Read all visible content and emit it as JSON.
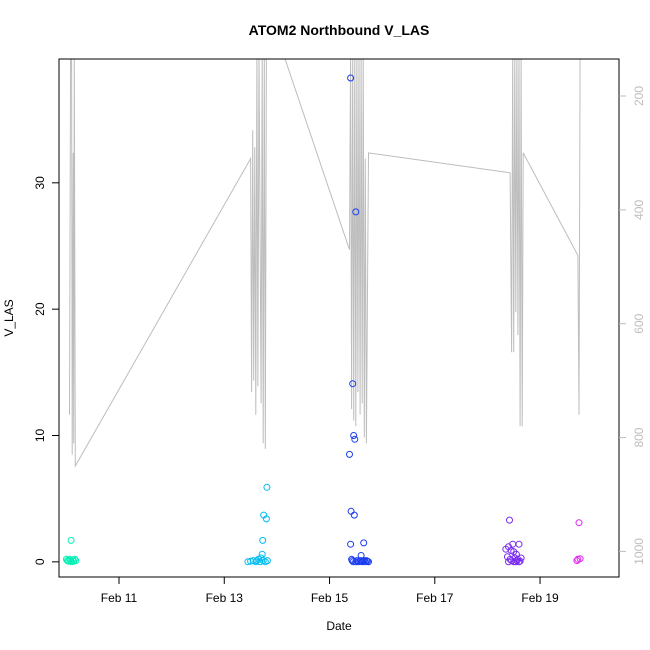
{
  "chart_data": {
    "type": "scatter",
    "title": "ATOM2 Northbound V_LAS",
    "xlabel": "Date",
    "ylabel": "V_LAS",
    "x_unit": "day of February",
    "xlim": [
      9.86,
      20.5
    ],
    "ylim": [
      -1.2,
      39.8
    ],
    "x_ticks": [
      {
        "value": 11,
        "label": "Feb 11"
      },
      {
        "value": 13,
        "label": "Feb 13"
      },
      {
        "value": 15,
        "label": "Feb 15"
      },
      {
        "value": 17,
        "label": "Feb 17"
      },
      {
        "value": 19,
        "label": "Feb 19"
      }
    ],
    "y_ticks": [
      {
        "value": 0,
        "label": "0"
      },
      {
        "value": 10,
        "label": "10"
      },
      {
        "value": 20,
        "label": "20"
      },
      {
        "value": 30,
        "label": "30"
      }
    ],
    "secondary_axis": {
      "side": "right",
      "color": "#bdbdbd",
      "reversed": true,
      "ylim": [
        1045,
        135
      ],
      "ticks": [
        {
          "value": 200,
          "label": "200"
        },
        {
          "value": 400,
          "label": "400"
        },
        {
          "value": 600,
          "label": "600"
        },
        {
          "value": 800,
          "label": "800"
        },
        {
          "value": 1000,
          "label": "1000"
        }
      ]
    },
    "grid": false,
    "legend": "none",
    "line_series": {
      "color": "#bdbdbd",
      "axis": "secondary",
      "points": [
        [
          10.06,
          760
        ],
        [
          10.08,
          120
        ],
        [
          10.1,
          120
        ],
        [
          10.11,
          830
        ],
        [
          10.13,
          300
        ],
        [
          10.14,
          810
        ],
        [
          10.15,
          120
        ],
        [
          10.17,
          850
        ],
        [
          13.5,
          310
        ],
        [
          13.52,
          720
        ],
        [
          13.54,
          260
        ],
        [
          13.56,
          700
        ],
        [
          13.58,
          290
        ],
        [
          13.6,
          760
        ],
        [
          13.62,
          120
        ],
        [
          13.64,
          710
        ],
        [
          13.66,
          120
        ],
        [
          13.7,
          740
        ],
        [
          13.72,
          120
        ],
        [
          13.74,
          810
        ],
        [
          13.76,
          120
        ],
        [
          13.78,
          820
        ],
        [
          13.8,
          120
        ],
        [
          13.82,
          120
        ],
        [
          14.1,
          120
        ],
        [
          15.38,
          470
        ],
        [
          15.4,
          120
        ],
        [
          15.42,
          750
        ],
        [
          15.44,
          120
        ],
        [
          15.46,
          770
        ],
        [
          15.48,
          120
        ],
        [
          15.5,
          780
        ],
        [
          15.52,
          120
        ],
        [
          15.54,
          720
        ],
        [
          15.56,
          120
        ],
        [
          15.58,
          760
        ],
        [
          15.6,
          120
        ],
        [
          15.62,
          740
        ],
        [
          15.64,
          120
        ],
        [
          15.66,
          800
        ],
        [
          15.68,
          310
        ],
        [
          15.7,
          810
        ],
        [
          15.74,
          300
        ],
        [
          18.43,
          335
        ],
        [
          18.46,
          650
        ],
        [
          18.48,
          120
        ],
        [
          18.5,
          650
        ],
        [
          18.52,
          120
        ],
        [
          18.54,
          580
        ],
        [
          18.56,
          120
        ],
        [
          18.58,
          620
        ],
        [
          18.6,
          120
        ],
        [
          18.62,
          780
        ],
        [
          18.64,
          120
        ],
        [
          18.66,
          780
        ],
        [
          18.68,
          300
        ],
        [
          19.72,
          480
        ],
        [
          19.74,
          760
        ],
        [
          19.76,
          120
        ]
      ]
    },
    "series": [
      {
        "color": "#00f0b4",
        "points": [
          [
            10.0,
            0.2
          ],
          [
            10.02,
            0.1
          ],
          [
            10.04,
            0.05
          ],
          [
            10.06,
            0.2
          ],
          [
            10.08,
            0.1
          ],
          [
            10.09,
            1.7
          ],
          [
            10.1,
            0.0
          ],
          [
            10.12,
            0.15
          ],
          [
            10.14,
            0.05
          ],
          [
            10.16,
            0.2
          ],
          [
            10.18,
            0.1
          ]
        ]
      },
      {
        "color": "#00bcf0",
        "points": [
          [
            13.45,
            0.0
          ],
          [
            13.5,
            0.05
          ],
          [
            13.55,
            0.1
          ],
          [
            13.6,
            0.0
          ],
          [
            13.62,
            0.1
          ],
          [
            13.65,
            0.2
          ],
          [
            13.68,
            0.0
          ],
          [
            13.7,
            0.3
          ],
          [
            13.72,
            0.6
          ],
          [
            13.73,
            1.7
          ],
          [
            13.74,
            0.1
          ],
          [
            13.75,
            3.7
          ],
          [
            13.78,
            0.0
          ],
          [
            13.8,
            3.4
          ],
          [
            13.81,
            5.9
          ],
          [
            13.82,
            0.1
          ]
        ]
      },
      {
        "color": "#1a3cf0",
        "points": [
          [
            15.4,
            38.3
          ],
          [
            15.42,
            0.2
          ],
          [
            15.44,
            14.1
          ],
          [
            15.46,
            10.0
          ],
          [
            15.48,
            9.7
          ],
          [
            15.5,
            27.7
          ],
          [
            15.38,
            8.5
          ],
          [
            15.41,
            4.0
          ],
          [
            15.47,
            3.7
          ],
          [
            15.4,
            1.4
          ],
          [
            15.65,
            1.5
          ],
          [
            15.6,
            0.5
          ],
          [
            15.43,
            0.1
          ],
          [
            15.45,
            0.0
          ],
          [
            15.5,
            0.0
          ],
          [
            15.52,
            0.1
          ],
          [
            15.55,
            0.0
          ],
          [
            15.58,
            0.05
          ],
          [
            15.6,
            0.1
          ],
          [
            15.62,
            0.0
          ],
          [
            15.64,
            0.05
          ],
          [
            15.66,
            0.1
          ],
          [
            15.68,
            0.0
          ],
          [
            15.7,
            0.1
          ],
          [
            15.72,
            0.05
          ],
          [
            15.74,
            0.0
          ]
        ]
      },
      {
        "color": "#7a2cf0",
        "points": [
          [
            18.35,
            1.0
          ],
          [
            18.4,
            1.2
          ],
          [
            18.42,
            3.3
          ],
          [
            18.45,
            0.9
          ],
          [
            18.48,
            1.4
          ],
          [
            18.6,
            1.4
          ],
          [
            18.5,
            0.8
          ],
          [
            18.55,
            0.6
          ],
          [
            18.38,
            0.4
          ],
          [
            18.4,
            0.0
          ],
          [
            18.43,
            0.2
          ],
          [
            18.46,
            0.1
          ],
          [
            18.5,
            0.0
          ],
          [
            18.52,
            0.3
          ],
          [
            18.54,
            0.0
          ],
          [
            18.56,
            0.1
          ],
          [
            18.58,
            0.2
          ],
          [
            18.6,
            0.0
          ],
          [
            18.62,
            0.05
          ],
          [
            18.64,
            0.3
          ]
        ]
      },
      {
        "color": "#e028f0",
        "points": [
          [
            19.7,
            0.1
          ],
          [
            19.72,
            0.2
          ],
          [
            19.74,
            3.1
          ],
          [
            19.76,
            0.25
          ]
        ]
      }
    ]
  }
}
